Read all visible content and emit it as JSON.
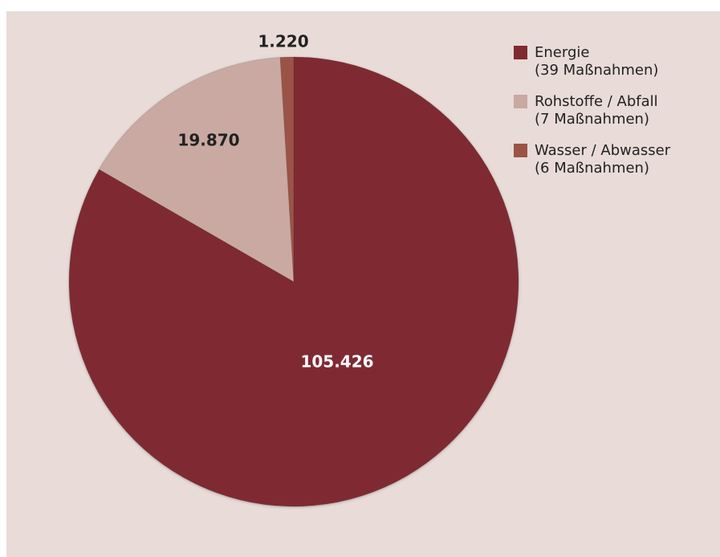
{
  "chart_data": {
    "type": "pie",
    "title": "",
    "slices": [
      {
        "name": "Energie",
        "sublabel": "(39 Maßnahmen)",
        "value": 105426,
        "label": "105.426",
        "color": "#7f2b30",
        "label_color": "#ffffff"
      },
      {
        "name": "Rohstoffe / Abfall",
        "sublabel": "(7 Maßnahmen)",
        "value": 19870,
        "label": "19.870",
        "color": "#c9a9a2",
        "label_color": "#222222"
      },
      {
        "name": "Wasser / Abwasser",
        "sublabel": "(6 Maßnahmen)",
        "value": 1220,
        "label": "1.220",
        "color": "#9c5346",
        "label_color": "#222222"
      }
    ],
    "legend_position": "top-right"
  },
  "colors": {
    "panel_background": "#e8dbd8",
    "page_background": "#ffffff"
  }
}
